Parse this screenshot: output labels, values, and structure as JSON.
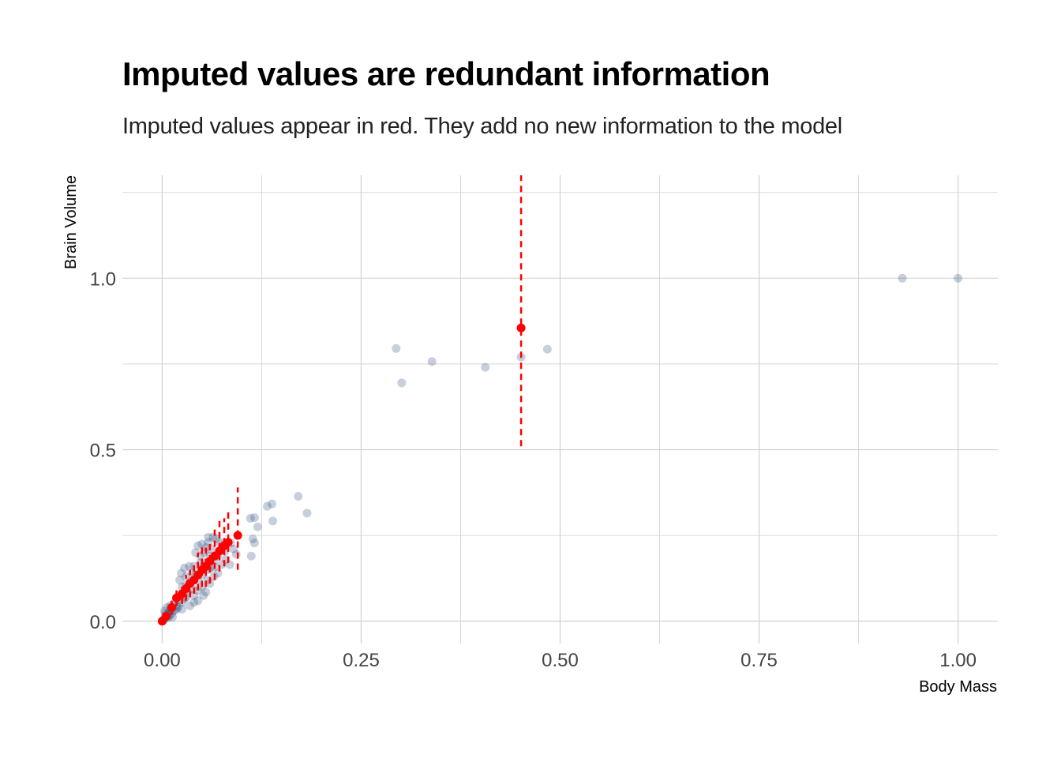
{
  "chart_data": {
    "type": "scatter",
    "title": "Imputed values are redundant information",
    "subtitle": "Imputed values appear in red. They add no new information to the model",
    "xlabel": "Body Mass",
    "ylabel": "Brain Volume",
    "xlim": [
      -0.05,
      1.05
    ],
    "ylim": [
      -0.065,
      1.3
    ],
    "x_ticks": [
      {
        "value": 0.0,
        "label": "0.00"
      },
      {
        "value": 0.25,
        "label": "0.25"
      },
      {
        "value": 0.5,
        "label": "0.50"
      },
      {
        "value": 0.75,
        "label": "0.75"
      },
      {
        "value": 1.0,
        "label": "1.00"
      }
    ],
    "y_ticks": [
      {
        "value": 0.0,
        "label": "0.0"
      },
      {
        "value": 0.5,
        "label": "0.5"
      },
      {
        "value": 1.0,
        "label": "1.0"
      }
    ],
    "x_minor_grid": [
      0.125,
      0.375,
      0.625,
      0.875
    ],
    "y_minor_grid": [
      0.25,
      0.75,
      1.25
    ],
    "grid": true,
    "colors": {
      "observed": "#1f3f73",
      "imputed": "#ff0000",
      "grid": "#cfd0d4"
    },
    "series": [
      {
        "kind": "observed",
        "points": [
          [
            0.93,
            1.0
          ],
          [
            1.0,
            1.0
          ],
          [
            0.294,
            0.795
          ],
          [
            0.301,
            0.695
          ],
          [
            0.339,
            0.757
          ],
          [
            0.406,
            0.74
          ],
          [
            0.451,
            0.77
          ],
          [
            0.484,
            0.793
          ],
          [
            0.171,
            0.364
          ],
          [
            0.182,
            0.315
          ],
          [
            0.138,
            0.342
          ],
          [
            0.132,
            0.335
          ],
          [
            0.139,
            0.292
          ],
          [
            0.111,
            0.3
          ],
          [
            0.116,
            0.302
          ],
          [
            0.12,
            0.275
          ],
          [
            0.114,
            0.24
          ],
          [
            0.116,
            0.228
          ],
          [
            0.112,
            0.19
          ],
          [
            0.093,
            0.195
          ],
          [
            0.086,
            0.228
          ],
          [
            0.079,
            0.205
          ],
          [
            0.072,
            0.23
          ],
          [
            0.068,
            0.24
          ],
          [
            0.064,
            0.245
          ],
          [
            0.058,
            0.245
          ],
          [
            0.062,
            0.21
          ],
          [
            0.055,
            0.215
          ],
          [
            0.05,
            0.225
          ],
          [
            0.045,
            0.22
          ],
          [
            0.042,
            0.2
          ],
          [
            0.048,
            0.19
          ],
          [
            0.052,
            0.16
          ],
          [
            0.058,
            0.15
          ],
          [
            0.065,
            0.13
          ],
          [
            0.055,
            0.085
          ],
          [
            0.052,
            0.075
          ],
          [
            0.045,
            0.12
          ],
          [
            0.038,
            0.14
          ],
          [
            0.035,
            0.115
          ],
          [
            0.028,
            0.155
          ],
          [
            0.024,
            0.14
          ],
          [
            0.022,
            0.12
          ],
          [
            0.03,
            0.105
          ],
          [
            0.032,
            0.085
          ],
          [
            0.028,
            0.065
          ],
          [
            0.025,
            0.055
          ],
          [
            0.02,
            0.062
          ],
          [
            0.018,
            0.045
          ],
          [
            0.015,
            0.052
          ],
          [
            0.012,
            0.038
          ],
          [
            0.01,
            0.03
          ],
          [
            0.008,
            0.025
          ],
          [
            0.006,
            0.018
          ],
          [
            0.005,
            0.012
          ],
          [
            0.003,
            0.008
          ],
          [
            0.002,
            0.005
          ],
          [
            0.001,
            0.002
          ],
          [
            0.0,
            0.0
          ],
          [
            0.004,
            0.022
          ],
          [
            0.009,
            0.015
          ],
          [
            0.012,
            0.022
          ],
          [
            0.015,
            0.03
          ],
          [
            0.018,
            0.035
          ],
          [
            0.01,
            0.045
          ],
          [
            0.006,
            0.04
          ],
          [
            0.003,
            0.03
          ],
          [
            0.007,
            0.01
          ],
          [
            0.013,
            0.012
          ],
          [
            0.02,
            0.04
          ],
          [
            0.025,
            0.035
          ],
          [
            0.035,
            0.045
          ],
          [
            0.04,
            0.055
          ],
          [
            0.03,
            0.07
          ],
          [
            0.04,
            0.075
          ],
          [
            0.045,
            0.09
          ],
          [
            0.05,
            0.1
          ],
          [
            0.06,
            0.11
          ],
          [
            0.07,
            0.14
          ],
          [
            0.075,
            0.165
          ],
          [
            0.065,
            0.175
          ],
          [
            0.07,
            0.19
          ],
          [
            0.08,
            0.18
          ],
          [
            0.085,
            0.165
          ],
          [
            0.09,
            0.21
          ],
          [
            0.078,
            0.225
          ],
          [
            0.073,
            0.205
          ],
          [
            0.06,
            0.19
          ],
          [
            0.055,
            0.17
          ],
          [
            0.048,
            0.17
          ],
          [
            0.04,
            0.16
          ],
          [
            0.034,
            0.16
          ],
          [
            0.03,
            0.13
          ],
          [
            0.025,
            0.1
          ],
          [
            0.042,
            0.135
          ],
          [
            0.038,
            0.095
          ],
          [
            0.045,
            0.06
          ],
          [
            0.05,
            0.135
          ],
          [
            0.057,
            0.12
          ],
          [
            0.06,
            0.155
          ],
          [
            0.066,
            0.158
          ],
          [
            0.053,
            0.2
          ],
          [
            0.058,
            0.23
          ]
        ]
      },
      {
        "kind": "imputed",
        "points": [
          {
            "x": 0.451,
            "y": 0.855,
            "lo": 0.51,
            "hi": 1.3
          },
          {
            "x": 0.095,
            "y": 0.25,
            "lo": 0.15,
            "hi": 0.39
          },
          {
            "x": 0.083,
            "y": 0.23,
            "lo": 0.17,
            "hi": 0.325
          },
          {
            "x": 0.078,
            "y": 0.22,
            "lo": 0.16,
            "hi": 0.3
          },
          {
            "x": 0.072,
            "y": 0.205,
            "lo": 0.145,
            "hi": 0.3
          },
          {
            "x": 0.066,
            "y": 0.19,
            "lo": 0.12,
            "hi": 0.28
          },
          {
            "x": 0.06,
            "y": 0.175,
            "lo": 0.11,
            "hi": 0.24
          },
          {
            "x": 0.055,
            "y": 0.16,
            "lo": 0.1,
            "hi": 0.22
          },
          {
            "x": 0.05,
            "y": 0.15,
            "lo": 0.1,
            "hi": 0.215
          },
          {
            "x": 0.045,
            "y": 0.135,
            "lo": 0.09,
            "hi": 0.2
          },
          {
            "x": 0.04,
            "y": 0.12,
            "lo": 0.08,
            "hi": 0.17
          },
          {
            "x": 0.035,
            "y": 0.11,
            "lo": 0.07,
            "hi": 0.15
          },
          {
            "x": 0.03,
            "y": 0.095,
            "lo": 0.06,
            "hi": 0.135
          },
          {
            "x": 0.025,
            "y": 0.08,
            "lo": 0.05,
            "hi": 0.11
          },
          {
            "x": 0.018,
            "y": 0.068,
            "lo": 0.045,
            "hi": 0.09
          },
          {
            "x": 0.012,
            "y": 0.04,
            "lo": 0.02,
            "hi": 0.06
          },
          {
            "x": 0.005,
            "y": 0.015,
            "lo": 0.005,
            "hi": 0.03
          },
          {
            "x": 0.0,
            "y": 0.0,
            "lo": -0.005,
            "hi": 0.01
          }
        ]
      }
    ]
  }
}
